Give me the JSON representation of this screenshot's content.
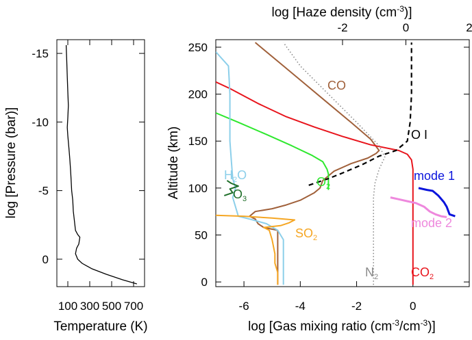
{
  "chart_data": [
    {
      "type": "line",
      "panel": "temperature-profile",
      "xlabel": "Temperature (K)",
      "ylabel": "log [Pressure (bar)]",
      "xlim": [
        0,
        800
      ],
      "ylim": [
        2,
        -16
      ],
      "y_reversed": true,
      "xticks": [
        100,
        300,
        500,
        700
      ],
      "xtick_labels": [
        "100",
        "300",
        "500",
        "700"
      ],
      "yticks": [
        -15,
        -10,
        -5,
        0
      ],
      "ytick_labels": [
        "-15",
        "-10",
        "-5",
        "0"
      ],
      "series": [
        {
          "color": "#000000",
          "points": [
            [
              730,
              1.8
            ],
            [
              600,
              1.5
            ],
            [
              450,
              1.1
            ],
            [
              320,
              0.7
            ],
            [
              230,
              0.3
            ],
            [
              190,
              0.0
            ],
            [
              170,
              -0.4
            ],
            [
              180,
              -0.8
            ],
            [
              200,
              -1.1
            ],
            [
              210,
              -1.6
            ],
            [
              190,
              -1.8
            ],
            [
              170,
              -2.1
            ],
            [
              160,
              -2.8
            ],
            [
              150,
              -3.5
            ],
            [
              145,
              -4.3
            ],
            [
              135,
              -5.0
            ],
            [
              130,
              -5.8
            ],
            [
              125,
              -6.5
            ],
            [
              118,
              -7.3
            ],
            [
              110,
              -8.1
            ],
            [
              100,
              -9.0
            ],
            [
              95,
              -9.6
            ],
            [
              100,
              -10.3
            ],
            [
              105,
              -11.2
            ],
            [
              100,
              -12.2
            ],
            [
              95,
              -13.3
            ],
            [
              90,
              -14.5
            ],
            [
              85,
              -15.6
            ]
          ]
        }
      ]
    },
    {
      "type": "line",
      "panel": "composition-profile",
      "xlabel": "log [Gas mixing ratio (cm⁻³/cm⁻³)]",
      "ylabel": "Altitude (km)",
      "top_xlabel": "log [Haze density (cm⁻³)]",
      "xlim": [
        -7,
        2
      ],
      "ylim": [
        -5,
        258
      ],
      "xticks": [
        -6,
        -4,
        -2,
        0
      ],
      "xtick_labels": [
        "-6",
        "-4",
        "-2",
        "0"
      ],
      "top_xlim": [
        -6,
        2
      ],
      "top_xticks": [
        -2,
        0,
        2
      ],
      "top_xtick_labels": [
        "-2",
        "0",
        "2"
      ],
      "yticks": [
        0,
        50,
        100,
        150,
        200,
        250
      ],
      "ytick_labels": [
        "0",
        "50",
        "100",
        "150",
        "200",
        "250"
      ],
      "series": [
        {
          "name": "CO",
          "color": "#a0603a",
          "style": "solid",
          "points": [
            [
              -4.8,
              -3
            ],
            [
              -4.8,
              20
            ],
            [
              -4.8,
              45
            ],
            [
              -4.8,
              55
            ],
            [
              -5.3,
              58
            ],
            [
              -5.5,
              62
            ],
            [
              -5.6,
              67
            ],
            [
              -5.8,
              70
            ],
            [
              -5.6,
              75
            ],
            [
              -5.0,
              78
            ],
            [
              -4.5,
              82
            ],
            [
              -4.0,
              87
            ],
            [
              -3.5,
              95
            ],
            [
              -3.3,
              100
            ],
            [
              -3.2,
              108
            ],
            [
              -2.8,
              118
            ],
            [
              -2.2,
              126
            ],
            [
              -1.6,
              132
            ],
            [
              -1.3,
              137
            ],
            [
              -1.2,
              140
            ],
            [
              -1.5,
              152
            ],
            [
              -2.2,
              170
            ],
            [
              -3.0,
              190
            ],
            [
              -3.8,
              210
            ],
            [
              -4.6,
              230
            ],
            [
              -5.4,
              250
            ],
            [
              -5.6,
              255
            ]
          ]
        },
        {
          "name": "CO₂",
          "color": "#e8141c",
          "style": "solid",
          "points": [
            [
              0,
              -3
            ],
            [
              0,
              50
            ],
            [
              0,
              100
            ],
            [
              0,
              120
            ],
            [
              -0.05,
              130
            ],
            [
              -0.2,
              136
            ],
            [
              -0.5,
              140
            ],
            [
              -1.5,
              146
            ],
            [
              -2.5,
              155
            ],
            [
              -3.5,
              165
            ],
            [
              -4.5,
              176
            ],
            [
              -5.5,
              190
            ],
            [
              -6.5,
              206
            ],
            [
              -7,
              213
            ]
          ]
        },
        {
          "name": "N₂",
          "color": "#8a8a8a",
          "style": "dotted",
          "points": [
            [
              -1.4,
              -3
            ],
            [
              -1.4,
              50
            ],
            [
              -1.4,
              90
            ],
            [
              -1.35,
              105
            ],
            [
              -1.2,
              120
            ],
            [
              -1.0,
              133
            ],
            [
              -1.2,
              145
            ],
            [
              -2.0,
              170
            ],
            [
              -3.0,
              200
            ],
            [
              -4.0,
              230
            ],
            [
              -4.6,
              255
            ]
          ]
        },
        {
          "name": "O₂",
          "color": "#2ee82e",
          "style": "solid",
          "points": [
            [
              -3.0,
              98
            ],
            [
              -3.0,
              110
            ],
            [
              -3.0,
              115
            ],
            [
              -3.05,
              120
            ],
            [
              -3.2,
              128
            ],
            [
              -3.6,
              135
            ],
            [
              -4.3,
              145
            ],
            [
              -5.2,
              157
            ],
            [
              -6.2,
              170
            ],
            [
              -7,
              180
            ]
          ]
        },
        {
          "name": "H₂O",
          "color": "#8ccfea",
          "style": "solid",
          "points": [
            [
              -4.6,
              -3
            ],
            [
              -4.6,
              20
            ],
            [
              -4.6,
              45
            ],
            [
              -4.8,
              55
            ],
            [
              -5.2,
              62
            ],
            [
              -5.8,
              67
            ],
            [
              -6.2,
              70
            ],
            [
              -6.3,
              80
            ],
            [
              -6.4,
              90
            ],
            [
              -6.3,
              100
            ],
            [
              -6.4,
              110
            ],
            [
              -6.45,
              130
            ],
            [
              -6.5,
              150
            ],
            [
              -6.5,
              200
            ],
            [
              -6.55,
              230
            ],
            [
              -7,
              245
            ]
          ]
        },
        {
          "name": "O₃",
          "color": "#1e6e28",
          "style": "solid",
          "points": [
            [
              -6.7,
              92
            ],
            [
              -6.4,
              95
            ],
            [
              -6.5,
              99
            ],
            [
              -6.2,
              102
            ],
            [
              -6.45,
              105
            ],
            [
              -6.6,
              108
            ]
          ]
        },
        {
          "name": "SO₂",
          "color": "#f5a623",
          "style": "solid",
          "points": [
            [
              -4.8,
              -3
            ],
            [
              -4.8,
              10
            ],
            [
              -4.9,
              20
            ],
            [
              -4.9,
              30
            ],
            [
              -5.0,
              45
            ],
            [
              -5.1,
              55
            ],
            [
              -5.3,
              58
            ],
            [
              -4.7,
              60
            ],
            [
              -4.4,
              63
            ],
            [
              -4.2,
              66
            ],
            [
              -5.0,
              68
            ],
            [
              -6.0,
              70
            ],
            [
              -7,
              71
            ]
          ]
        },
        {
          "name": "O I",
          "color": "#000000",
          "style": "dashed",
          "points": [
            [
              -3.7,
              103
            ],
            [
              -3.5,
              105
            ],
            [
              -3.0,
              110
            ],
            [
              -2.5,
              116
            ],
            [
              -1.8,
              125
            ],
            [
              -1.2,
              134
            ],
            [
              -0.6,
              140
            ],
            [
              -0.2,
              150
            ],
            [
              -0.1,
              170
            ],
            [
              -0.05,
              200
            ],
            [
              -0.05,
              230
            ],
            [
              -0.05,
              255
            ]
          ]
        },
        {
          "name": "mode 1",
          "color": "#0a14dc",
          "style": "solid",
          "points": [
            [
              0.2,
              100
            ],
            [
              0.5,
              98
            ],
            [
              0.7,
              97
            ],
            [
              0.9,
              92
            ],
            [
              1.1,
              85
            ],
            [
              1.2,
              80
            ],
            [
              1.3,
              72
            ],
            [
              1.5,
              70
            ]
          ]
        },
        {
          "name": "mode 2",
          "color": "#ee88dd",
          "style": "solid",
          "points": [
            [
              -0.8,
              90
            ],
            [
              -0.5,
              88
            ],
            [
              -0.2,
              86
            ],
            [
              0.1,
              84
            ],
            [
              0.4,
              80
            ],
            [
              0.6,
              75
            ],
            [
              0.8,
              72
            ],
            [
              1.0,
              70
            ],
            [
              1.2,
              69
            ]
          ]
        }
      ]
    }
  ],
  "labels": {
    "co": "CO",
    "o_i": "O I",
    "h2o_h": "H",
    "h2o_sub": "2",
    "h2o_o": "O",
    "o3_o": "O",
    "o3_sub": "3",
    "o2_o": "O",
    "o2_sub": "2",
    "so2_so": "SO",
    "so2_sub": "2",
    "n2_n": "N",
    "n2_sub": "2",
    "co2_co": "CO",
    "co2_sub": "2",
    "mode1": "mode 1",
    "mode2": "mode 2"
  },
  "axis_titles": {
    "left_x": "Temperature (K)",
    "left_y": "log [Pressure (bar)]",
    "right_y": "Altitude (km)",
    "bottom_x_pre": "log [Gas mixing ratio (cm",
    "bottom_x_sup1": "-3",
    "bottom_x_mid": "/cm",
    "bottom_x_sup2": "-3",
    "bottom_x_post": ")]",
    "top_x_pre": "log [Haze density (cm",
    "top_x_sup": "-3",
    "top_x_post": ")]"
  }
}
